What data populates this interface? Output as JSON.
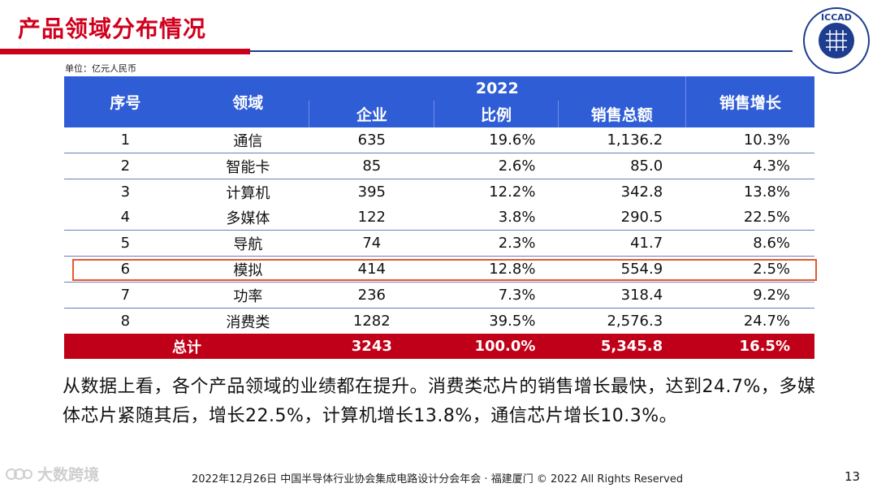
{
  "slide": {
    "title": "产品领域分布情况",
    "unit": "单位：亿元人民币",
    "page_number": "13",
    "footer": "2022年12月26日 中国半导体行业协会集成电路设计分会年会 · 福建厦门 © 2022 All Rights Reserved",
    "logo_text": "ICCAD",
    "watermark": "大数跨境"
  },
  "table": {
    "headers": {
      "seq": "序号",
      "area": "领域",
      "year": "2022",
      "enterprises": "企业",
      "ratio": "比例",
      "sales": "销售总额",
      "growth": "销售增长"
    },
    "rows": [
      {
        "seq": "1",
        "area": "通信",
        "enterprises": "635",
        "ratio": "19.6%",
        "sales": "1,136.2",
        "growth": "10.3%"
      },
      {
        "seq": "2",
        "area": "智能卡",
        "enterprises": "85",
        "ratio": "2.6%",
        "sales": "85.0",
        "growth": "4.3%"
      },
      {
        "seq": "3",
        "area": "计算机",
        "enterprises": "395",
        "ratio": "12.2%",
        "sales": "342.8",
        "growth": "13.8%"
      },
      {
        "seq": "4",
        "area": "多媒体",
        "enterprises": "122",
        "ratio": "3.8%",
        "sales": "290.5",
        "growth": "22.5%"
      },
      {
        "seq": "5",
        "area": "导航",
        "enterprises": "74",
        "ratio": "2.3%",
        "sales": "41.7",
        "growth": "8.6%"
      },
      {
        "seq": "6",
        "area": "模拟",
        "enterprises": "414",
        "ratio": "12.8%",
        "sales": "554.9",
        "growth": "2.5%"
      },
      {
        "seq": "7",
        "area": "功率",
        "enterprises": "236",
        "ratio": "7.3%",
        "sales": "318.4",
        "growth": "9.2%"
      },
      {
        "seq": "8",
        "area": "消费类",
        "enterprises": "1282",
        "ratio": "39.5%",
        "sales": "2,576.3",
        "growth": "24.7%"
      }
    ],
    "total": {
      "label": "总计",
      "enterprises": "3243",
      "ratio": "100.0%",
      "sales": "5,345.8",
      "growth": "16.5%"
    }
  },
  "paragraph": "从数据上看，各个产品领域的业绩都在提升。消费类芯片的销售增长最快，达到24.7%，多媒体芯片紧随其后，增长22.5%，计算机增长13.8%，通信芯片增长10.3%。",
  "colors": {
    "title_red": "#d0001e",
    "header_blue": "#2f5dd6",
    "total_red": "#c00018",
    "highlight_orange": "#e8572f"
  }
}
